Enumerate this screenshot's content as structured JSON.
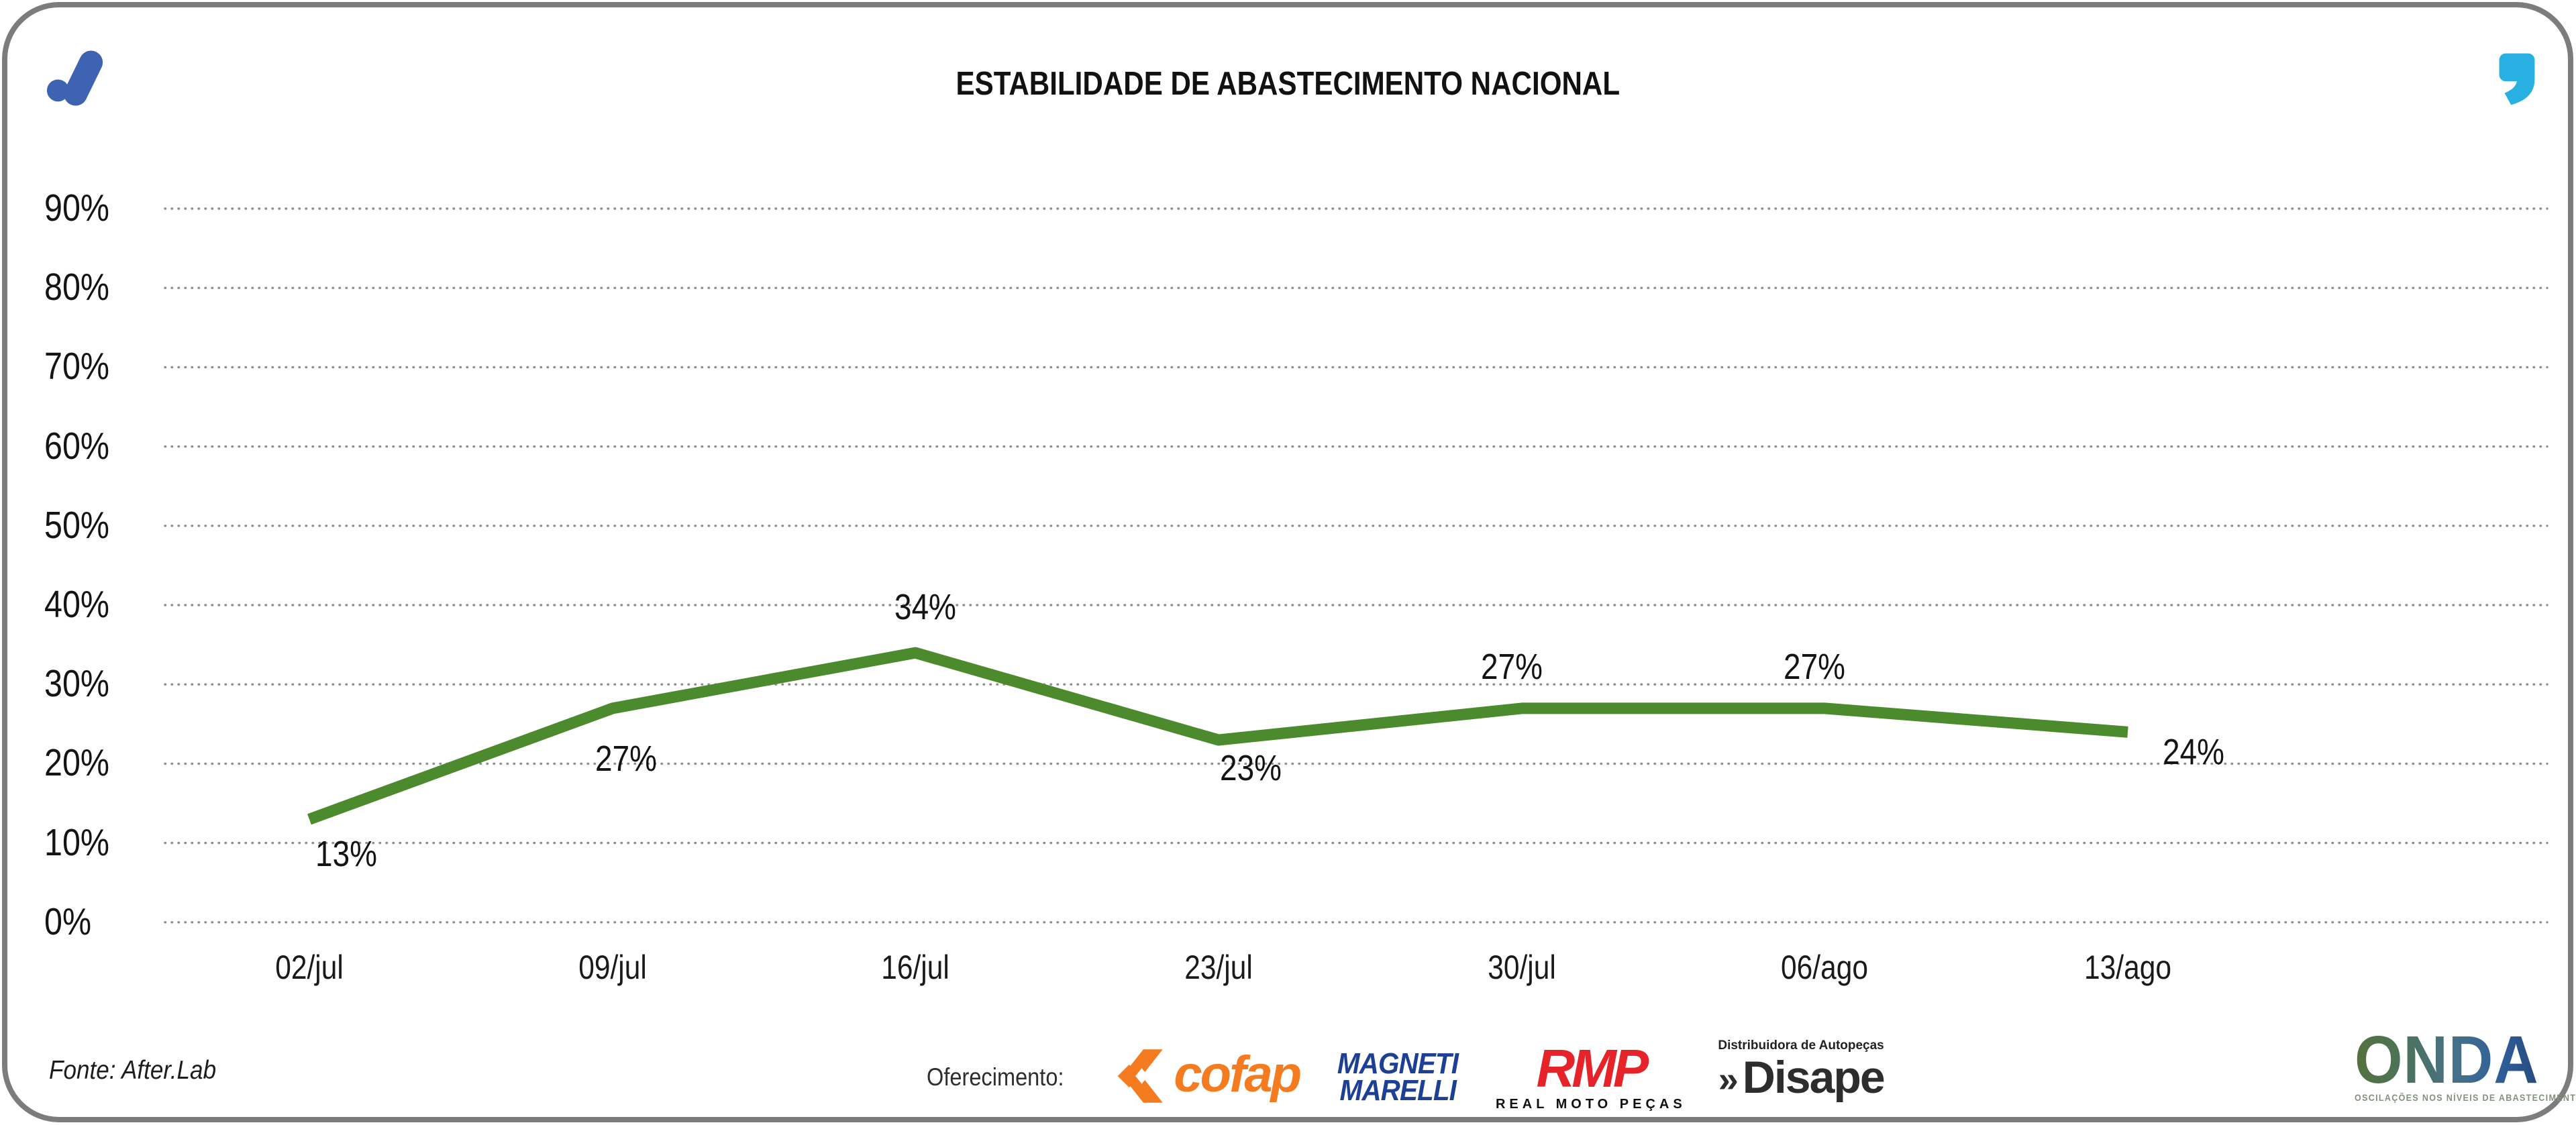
{
  "header": {
    "title": "ESTABILIDADE DE ABASTECIMENTO NACIONAL"
  },
  "brand": {
    "logo_icon": "after-lab-mark",
    "logo_color": "#3d63b2",
    "quote_icon": "quote-mark",
    "quote_color": "#29b0e3"
  },
  "chart_data": {
    "type": "line",
    "title": "ESTABILIDADE DE ABASTECIMENTO NACIONAL",
    "categories": [
      "02/jul",
      "09/jul",
      "16/jul",
      "23/jul",
      "30/jul",
      "06/ago",
      "13/ago"
    ],
    "series": [
      {
        "name": "Estabilidade de abastecimento nacional",
        "values": [
          13,
          27,
          34,
          23,
          27,
          27,
          24
        ]
      }
    ],
    "data_labels": [
      "13%",
      "27%",
      "34%",
      "23%",
      "27%",
      "27%",
      "24%"
    ],
    "yticks": [
      "90%",
      "80%",
      "70%",
      "60%",
      "50%",
      "40%",
      "30%",
      "20%",
      "10%",
      "0%"
    ],
    "ylabel": "",
    "xlabel": "",
    "ylim": [
      0,
      90
    ],
    "grid": "dotted-horizontal",
    "grid_color": "#8f8f8f",
    "line_color": "#4b8a2d",
    "legend": "none"
  },
  "footer": {
    "fonte": "Fonte: After.Lab",
    "oferecimento_label": "Oferecimento:",
    "sponsors": {
      "cofap": {
        "name": "Cofap",
        "text": "cofap",
        "color": "#f47b20"
      },
      "magneti": {
        "name": "Magneti Marelli",
        "line1": "MAGNETI",
        "line2": "MARELLI",
        "color": "#1d3f94"
      },
      "rmp": {
        "name": "RMP",
        "text": "RMP",
        "subtext": "REAL MOTO PEÇAS",
        "color": "#e62329"
      },
      "disape": {
        "name": "Disape",
        "prefix": "»",
        "text": "Disape",
        "supertext": "Distribuidora de Autopeças",
        "color": "#2d2d2d"
      }
    },
    "onda": {
      "title": "ONDA",
      "tagline": "OSCILAÇÕES NOS NÍVEIS DE ABASTECIMENTO E PREÇO"
    }
  }
}
